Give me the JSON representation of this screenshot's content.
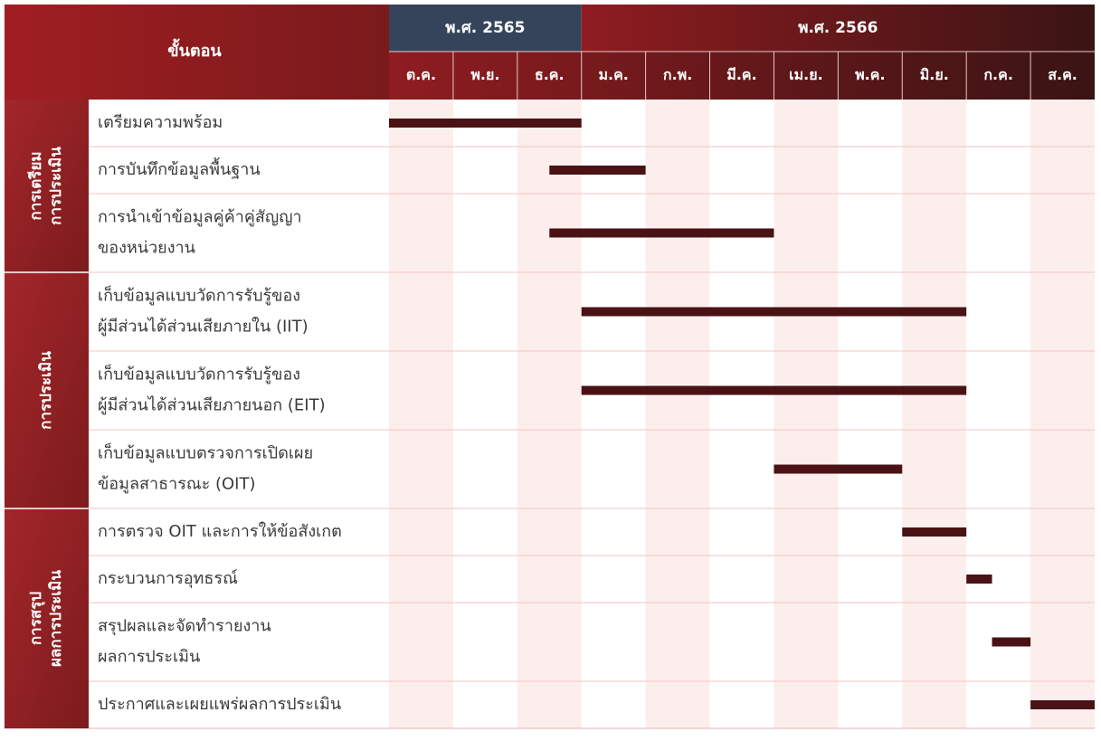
{
  "header": {
    "stage_label": "ขั้นตอน",
    "years": [
      {
        "label": "พ.ศ. 2565",
        "months": [
          "ต.ค.",
          "พ.ย.",
          "ธ.ค."
        ]
      },
      {
        "label": "พ.ศ. 2566",
        "months": [
          "ม.ค.",
          "ก.พ.",
          "มี.ค.",
          "เม.ย.",
          "พ.ค.",
          "มิ.ย.",
          "ก.ค.",
          "ส.ค."
        ]
      }
    ]
  },
  "groups": [
    {
      "label": [
        "การเตรียม",
        "การประเมิน"
      ],
      "tasks": [
        {
          "label": [
            "เตรียมความพร้อม"
          ],
          "start": 0,
          "end": 3
        },
        {
          "label": [
            "การบันทึกข้อมูลพื้นฐาน"
          ],
          "start": 2.5,
          "end": 4
        },
        {
          "label": [
            "การนำเข้าข้อมูลคู่ค้าคู่สัญญา",
            "ของหน่วยงาน"
          ],
          "start": 2.5,
          "end": 6
        }
      ]
    },
    {
      "label": [
        "การประเมิน"
      ],
      "tasks": [
        {
          "label": [
            "เก็บข้อมูลแบบวัดการรับรู้ของ",
            "ผู้มีส่วนได้ส่วนเสียภายใน (IIT)"
          ],
          "start": 3,
          "end": 9
        },
        {
          "label": [
            "เก็บข้อมูลแบบวัดการรับรู้ของ",
            "ผู้มีส่วนได้ส่วนเสียภายนอก (EIT)"
          ],
          "start": 3,
          "end": 9
        },
        {
          "label": [
            "เก็บข้อมูลแบบตรวจการเปิดเผย",
            "ข้อมูลสาธารณะ (OIT)"
          ],
          "start": 6,
          "end": 8
        }
      ]
    },
    {
      "label": [
        "การสรุป",
        "ผลการประเมิน"
      ],
      "tasks": [
        {
          "label": [
            "การตรวจ OIT และการให้ข้อสังเกต"
          ],
          "start": 8,
          "end": 9
        },
        {
          "label": [
            "กระบวนการอุทธรณ์"
          ],
          "start": 9,
          "end": 9.4
        },
        {
          "label": [
            "สรุปผลและจัดทำรายงาน",
            "ผลการประเมิน"
          ],
          "start": 9.4,
          "end": 10
        },
        {
          "label": [
            "ประกาศและเผยแพร่ผลการประเมิน"
          ],
          "start": 10,
          "end": 11
        }
      ]
    }
  ]
}
